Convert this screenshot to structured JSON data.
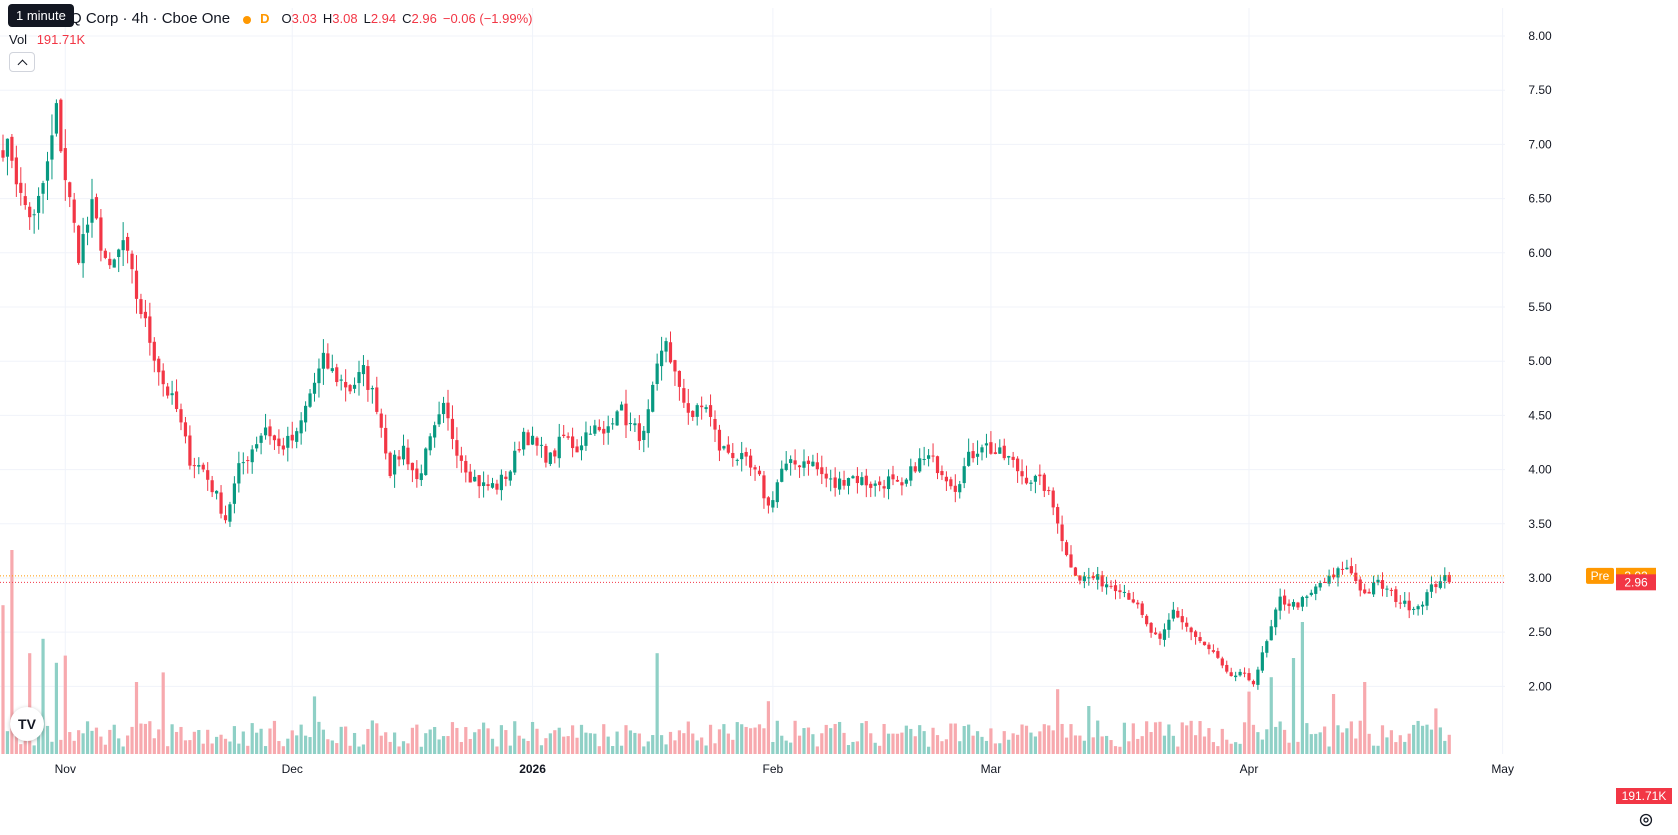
{
  "tooltip": "1 minute",
  "header": {
    "title": "Q Corp · 4h · Cboe One",
    "session_badge": "D",
    "o_label": "O",
    "o_value": "3.03",
    "h_label": "H",
    "h_value": "3.08",
    "l_label": "L",
    "l_value": "2.94",
    "c_label": "C",
    "c_value": "2.96",
    "change": "−0.06 (−1.99%)"
  },
  "volume_legend": {
    "label": "Vol",
    "value": "191.71K"
  },
  "logo_text": "TV",
  "colors": {
    "up": "#089981",
    "down": "#f23645",
    "up_vol": "#8fd0c6",
    "down_vol": "#f7a9ae",
    "pre": "#ff9800",
    "grid": "#f0f3fa"
  },
  "chart_data": {
    "type": "candlestick",
    "interval": "4h",
    "y_axis": {
      "ticks": [
        2.0,
        2.5,
        3.0,
        3.5,
        4.0,
        4.5,
        5.0,
        5.5,
        6.0,
        6.5,
        7.0,
        7.5,
        8.0
      ],
      "labels": [
        "2.00",
        "2.50",
        "3.00",
        "3.50",
        "4.00",
        "4.50",
        "5.00",
        "5.50",
        "6.00",
        "6.50",
        "7.00",
        "7.50",
        "8.00"
      ],
      "range": [
        1.45,
        8.0
      ]
    },
    "x_axis": {
      "labels": [
        {
          "text": "Nov",
          "bar": 14,
          "bold": false
        },
        {
          "text": "Dec",
          "bar": 65,
          "bold": false
        },
        {
          "text": "2026",
          "bar": 119,
          "bold": true
        },
        {
          "text": "Feb",
          "bar": 173,
          "bold": false
        },
        {
          "text": "Mar",
          "bar": 222,
          "bold": false
        },
        {
          "text": "Apr",
          "bar": 280,
          "bold": false
        },
        {
          "text": "May",
          "bar": 337,
          "bold": false
        }
      ]
    },
    "price_labels": {
      "pre_label": "Pre",
      "pre_value": "3.02",
      "pre_price": 3.02,
      "last_value": "2.96",
      "last_price": 2.96,
      "volume_value": "191.71K"
    },
    "anchors": [
      [
        0,
        7.0
      ],
      [
        2,
        6.9
      ],
      [
        4,
        6.5
      ],
      [
        7,
        6.3
      ],
      [
        10,
        6.8
      ],
      [
        12,
        7.3
      ],
      [
        14,
        6.7
      ],
      [
        17,
        6.0
      ],
      [
        20,
        6.4
      ],
      [
        24,
        5.8
      ],
      [
        27,
        6.1
      ],
      [
        30,
        5.6
      ],
      [
        33,
        5.2
      ],
      [
        36,
        4.8
      ],
      [
        39,
        4.55
      ],
      [
        42,
        4.1
      ],
      [
        45,
        4.0
      ],
      [
        48,
        3.75
      ],
      [
        50,
        3.55
      ],
      [
        53,
        4.0
      ],
      [
        56,
        4.2
      ],
      [
        59,
        4.4
      ],
      [
        62,
        4.2
      ],
      [
        66,
        4.3
      ],
      [
        69,
        4.7
      ],
      [
        72,
        5.0
      ],
      [
        75,
        4.85
      ],
      [
        78,
        4.75
      ],
      [
        81,
        4.9
      ],
      [
        84,
        4.6
      ],
      [
        87,
        4.0
      ],
      [
        90,
        4.2
      ],
      [
        93,
        3.9
      ],
      [
        96,
        4.25
      ],
      [
        99,
        4.55
      ],
      [
        102,
        4.2
      ],
      [
        105,
        3.95
      ],
      [
        108,
        3.85
      ],
      [
        111,
        3.85
      ],
      [
        114,
        4.0
      ],
      [
        117,
        4.35
      ],
      [
        120,
        4.2
      ],
      [
        123,
        4.1
      ],
      [
        126,
        4.3
      ],
      [
        129,
        4.2
      ],
      [
        132,
        4.4
      ],
      [
        135,
        4.3
      ],
      [
        138,
        4.6
      ],
      [
        141,
        4.4
      ],
      [
        144,
        4.3
      ],
      [
        147,
        4.9
      ],
      [
        149,
        5.2
      ],
      [
        152,
        4.7
      ],
      [
        155,
        4.5
      ],
      [
        158,
        4.6
      ],
      [
        161,
        4.2
      ],
      [
        164,
        4.15
      ],
      [
        167,
        4.05
      ],
      [
        170,
        3.9
      ],
      [
        172,
        3.65
      ],
      [
        175,
        4.0
      ],
      [
        178,
        4.05
      ],
      [
        181,
        4.1
      ],
      [
        184,
        3.95
      ],
      [
        187,
        3.85
      ],
      [
        190,
        3.95
      ],
      [
        193,
        3.9
      ],
      [
        196,
        3.85
      ],
      [
        199,
        3.9
      ],
      [
        202,
        3.8
      ],
      [
        205,
        4.05
      ],
      [
        208,
        4.1
      ],
      [
        211,
        4.0
      ],
      [
        214,
        3.85
      ],
      [
        217,
        4.1
      ],
      [
        220,
        4.25
      ],
      [
        223,
        4.15
      ],
      [
        226,
        4.1
      ],
      [
        229,
        3.95
      ],
      [
        232,
        3.9
      ],
      [
        234,
        3.85
      ],
      [
        237,
        3.55
      ],
      [
        239,
        3.2
      ],
      [
        242,
        3.0
      ],
      [
        245,
        3.0
      ],
      [
        248,
        2.95
      ],
      [
        251,
        2.92
      ],
      [
        254,
        2.8
      ],
      [
        257,
        2.55
      ],
      [
        260,
        2.4
      ],
      [
        263,
        2.7
      ],
      [
        266,
        2.55
      ],
      [
        269,
        2.4
      ],
      [
        272,
        2.3
      ],
      [
        275,
        2.1
      ],
      [
        278,
        2.1
      ],
      [
        281,
        2.05
      ],
      [
        284,
        2.4
      ],
      [
        287,
        2.8
      ],
      [
        290,
        2.75
      ],
      [
        293,
        2.8
      ],
      [
        296,
        2.95
      ],
      [
        299,
        3.0
      ],
      [
        301,
        3.1
      ],
      [
        303,
        3.05
      ],
      [
        306,
        2.85
      ],
      [
        309,
        2.95
      ],
      [
        312,
        2.85
      ],
      [
        315,
        2.75
      ],
      [
        318,
        2.75
      ],
      [
        321,
        2.9
      ],
      [
        323,
        3.0
      ],
      [
        325,
        2.96
      ]
    ],
    "volume_spikes": [
      [
        0,
        0.62
      ],
      [
        2,
        0.85
      ],
      [
        6,
        0.42
      ],
      [
        9,
        0.48
      ],
      [
        12,
        0.38
      ],
      [
        14,
        0.41
      ],
      [
        30,
        0.3
      ],
      [
        36,
        0.34
      ],
      [
        70,
        0.24
      ],
      [
        147,
        0.42
      ],
      [
        172,
        0.22
      ],
      [
        237,
        0.27
      ],
      [
        244,
        0.2
      ],
      [
        280,
        0.26
      ],
      [
        285,
        0.32
      ],
      [
        290,
        0.4
      ],
      [
        292,
        0.55
      ],
      [
        299,
        0.25
      ],
      [
        306,
        0.3
      ],
      [
        322,
        0.19
      ],
      [
        325,
        0.08
      ]
    ]
  }
}
